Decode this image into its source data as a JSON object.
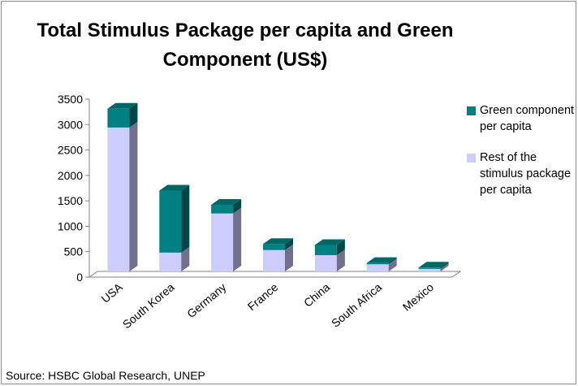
{
  "chart_data": {
    "type": "bar",
    "subtype": "stacked-3d",
    "title": "Total Stimulus Package per capita and Green Component (US$)",
    "categories": [
      "USA",
      "South Korea",
      "Germany",
      "France",
      "China",
      "South Africa",
      "Mexico"
    ],
    "series": [
      {
        "name": "Green component per capita",
        "color": "#008080",
        "values": [
          370,
          1220,
          170,
          120,
          200,
          25,
          25
        ]
      },
      {
        "name": "Rest of the stimulus package per capita",
        "color": "#ccccff",
        "values": [
          2830,
          370,
          1140,
          420,
          320,
          140,
          50
        ]
      }
    ],
    "ylim": [
      0,
      3500
    ],
    "yticks": [
      "0",
      "500",
      "1000",
      "1500",
      "2000",
      "2500",
      "3000",
      "3500"
    ],
    "xlabel": "",
    "ylabel": "",
    "legend_position": "right",
    "source": "Source: HSBC Global Research, UNEP"
  }
}
